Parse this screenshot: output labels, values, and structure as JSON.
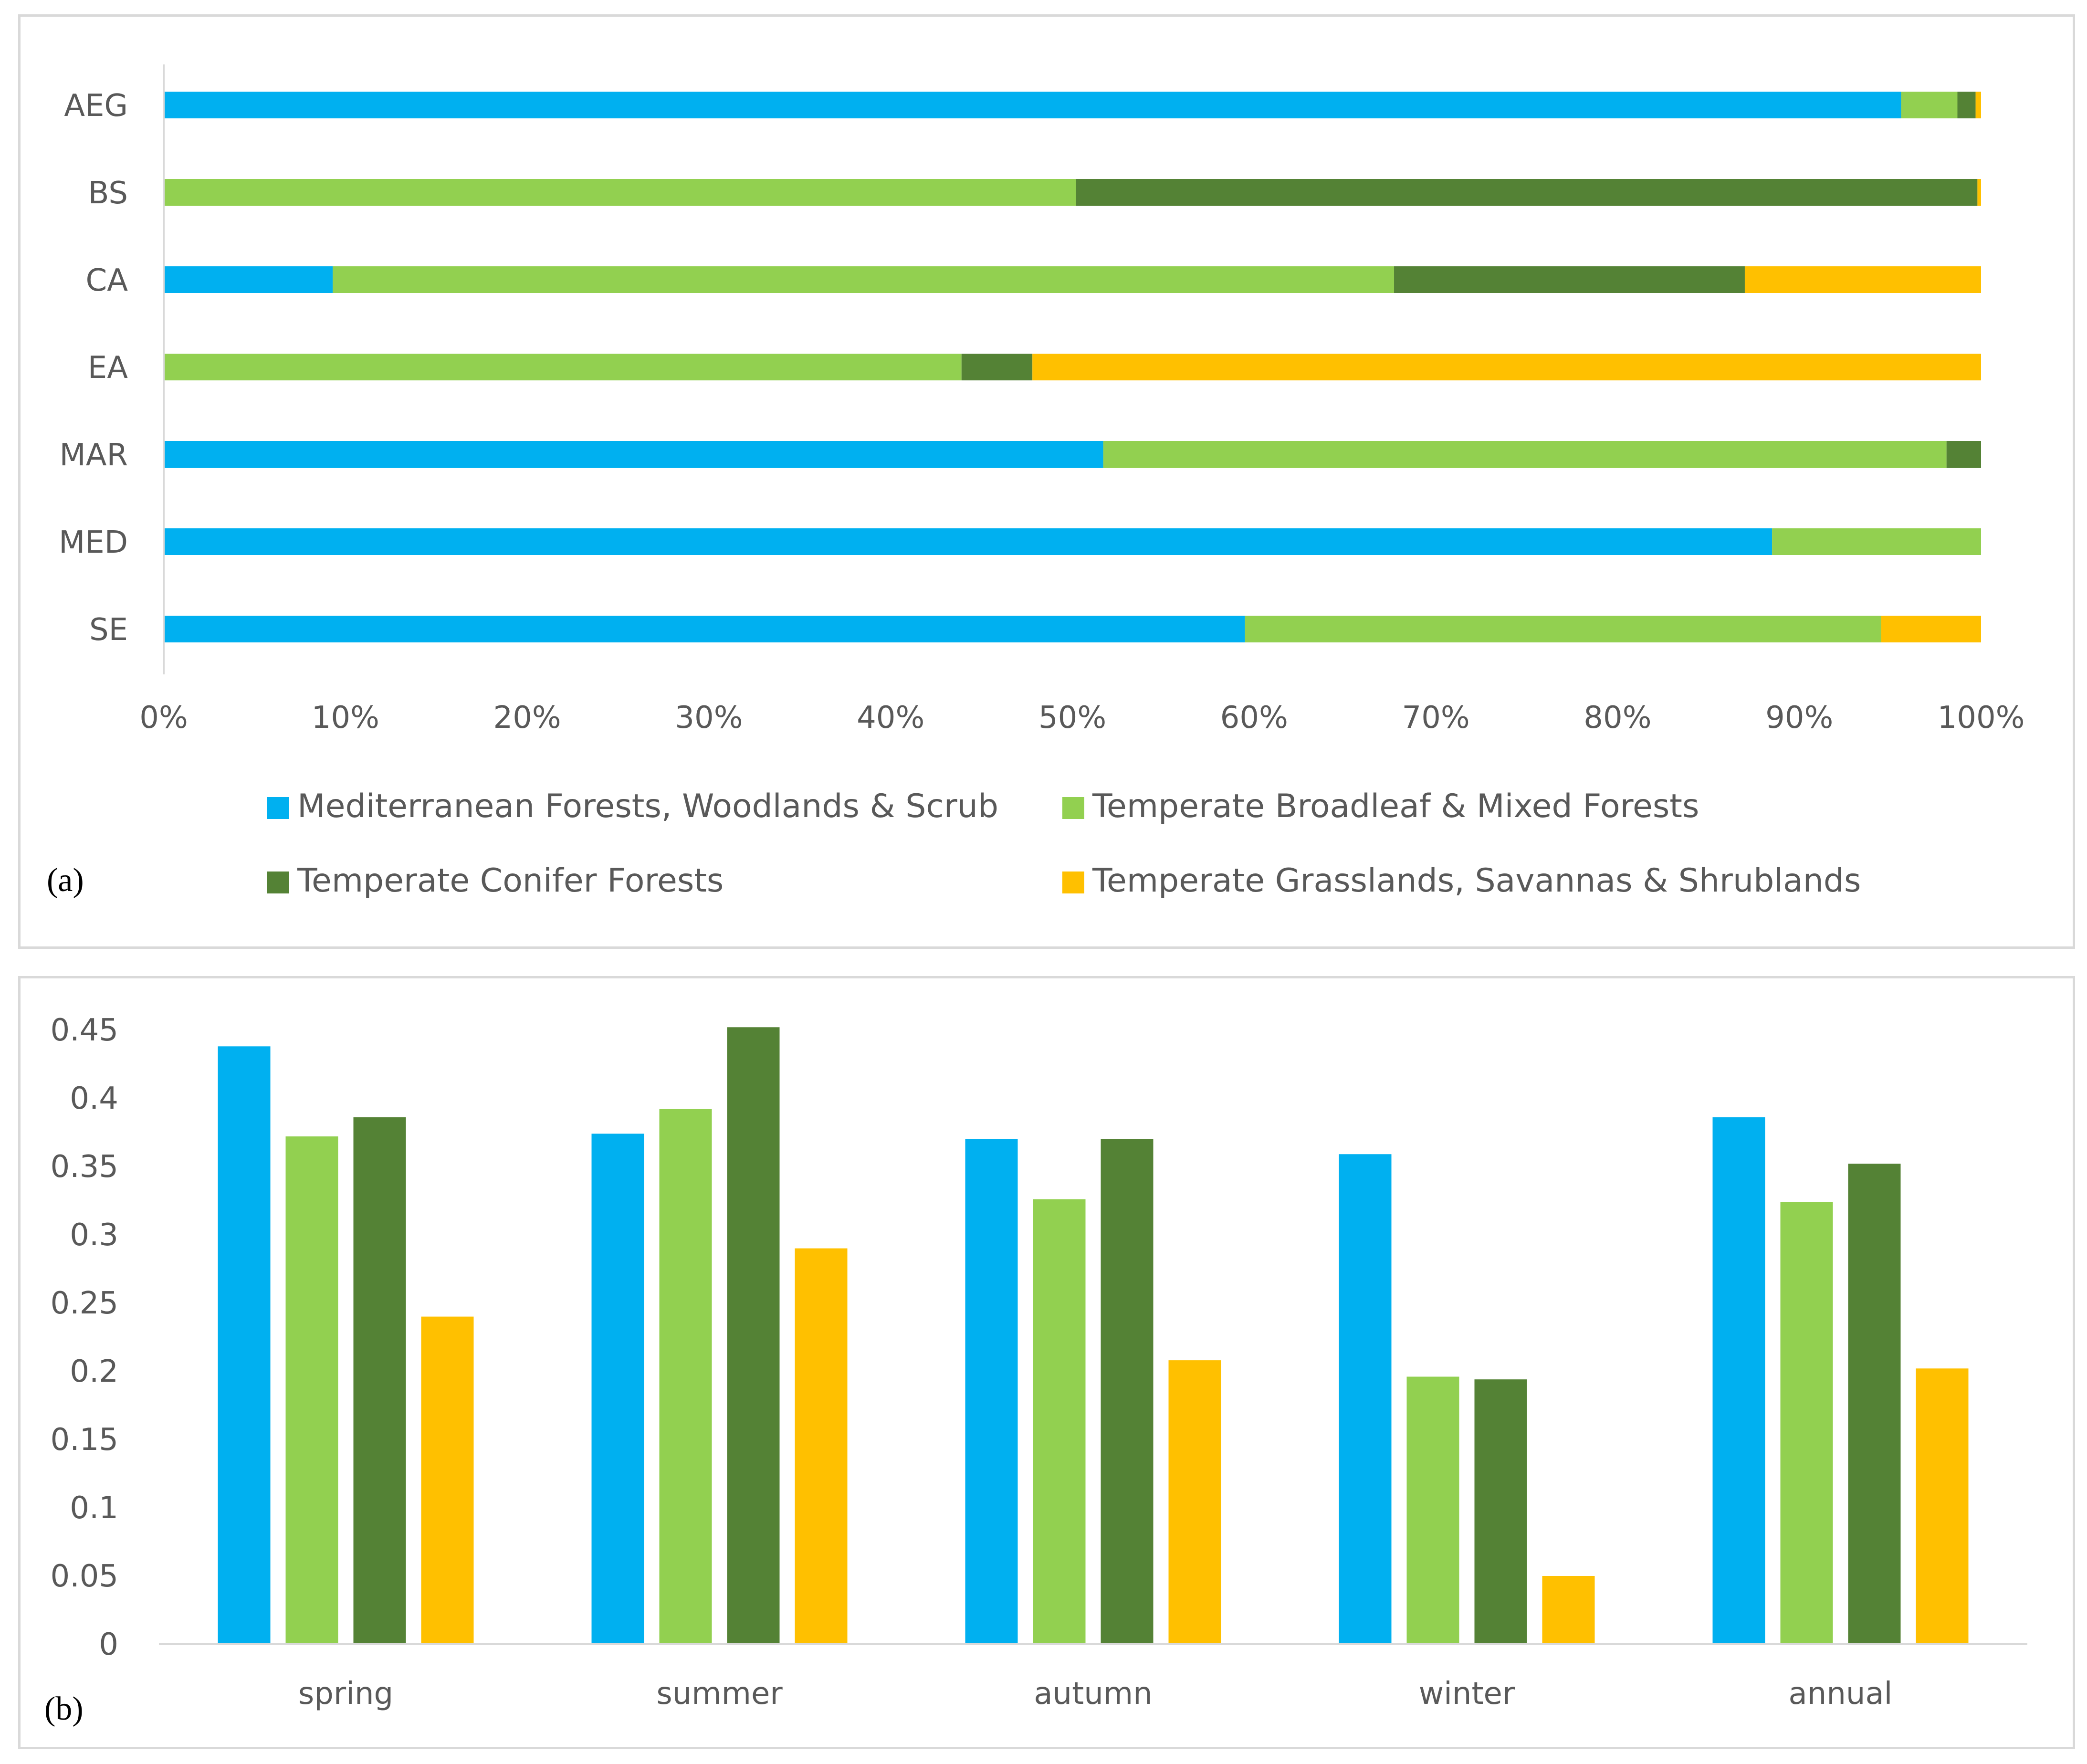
{
  "colors": {
    "mediterranean": "#00B0F0",
    "broadleaf": "#92D050",
    "conifer": "#548235",
    "grasslands": "#FFC000",
    "axis": "#d9d9d9",
    "text": "#595959"
  },
  "chart_data": [
    {
      "type": "bar",
      "orientation": "horizontal",
      "stacked": "percent",
      "panel_label": "(a)",
      "categories": [
        "AEG",
        "BS",
        "CA",
        "EA",
        "MAR",
        "MED",
        "SE"
      ],
      "xticks": [
        "0%",
        "10%",
        "20%",
        "30%",
        "40%",
        "50%",
        "60%",
        "70%",
        "80%",
        "90%",
        "100%"
      ],
      "xlim": [
        0,
        100
      ],
      "legend_position": "bottom",
      "series": [
        {
          "name": "Mediterranean Forests, Woodlands & Scrub",
          "color_key": "mediterranean",
          "values": [
            95.6,
            0,
            9.3,
            0,
            51.7,
            88.5,
            59.5
          ]
        },
        {
          "name": "Temperate Broadleaf & Mixed Forests",
          "color_key": "broadleaf",
          "values": [
            3.1,
            50.2,
            58.4,
            43.9,
            46.4,
            11.5,
            35.0
          ]
        },
        {
          "name": "Temperate Conifer Forests",
          "color_key": "conifer",
          "values": [
            1.0,
            49.6,
            19.3,
            3.9,
            1.9,
            0,
            0
          ]
        },
        {
          "name": "Temperate Grasslands, Savannas & Shrublands",
          "color_key": "grasslands",
          "values": [
            0.3,
            0.2,
            13.0,
            52.2,
            0,
            0,
            5.5
          ]
        }
      ]
    },
    {
      "type": "bar",
      "orientation": "vertical",
      "panel_label": "(b)",
      "categories": [
        "spring",
        "summer",
        "autumn",
        "winter",
        "annual"
      ],
      "yticks": [
        "0",
        "0.05",
        "0.1",
        "0.15",
        "0.2",
        "0.25",
        "0.3",
        "0.35",
        "0.4",
        "0.45"
      ],
      "ylim": [
        0,
        0.45
      ],
      "series": [
        {
          "name": "Mediterranean Forests, Woodlands & Scrub",
          "color_key": "mediterranean",
          "values": [
            0.438,
            0.374,
            0.37,
            0.359,
            0.386
          ]
        },
        {
          "name": "Temperate Broadleaf & Mixed Forests",
          "color_key": "broadleaf",
          "values": [
            0.372,
            0.392,
            0.326,
            0.196,
            0.324
          ]
        },
        {
          "name": "Temperate Conifer Forests",
          "color_key": "conifer",
          "values": [
            0.386,
            0.452,
            0.37,
            0.194,
            0.352
          ]
        },
        {
          "name": "Temperate Grasslands, Savannas & Shrublands",
          "color_key": "grasslands",
          "values": [
            0.24,
            0.29,
            0.208,
            0.05,
            0.202
          ]
        }
      ]
    }
  ]
}
